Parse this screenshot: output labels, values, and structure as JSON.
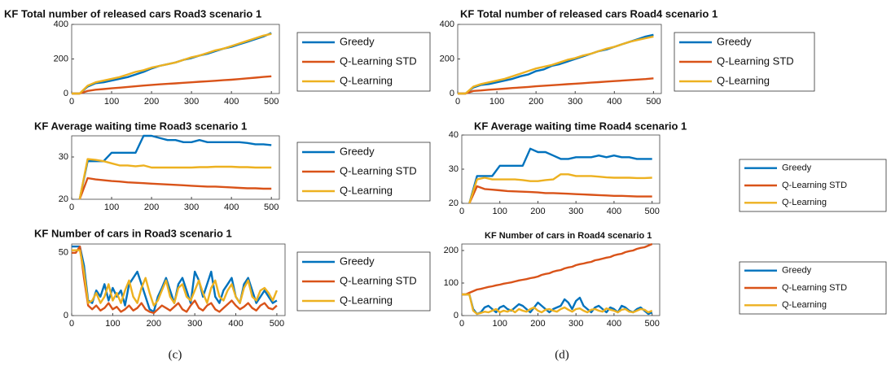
{
  "chart_data": [
    {
      "type": "line",
      "title": "KF Total number of released cars Road3 scenario 1",
      "x": [
        0,
        20,
        40,
        60,
        80,
        100,
        120,
        140,
        160,
        180,
        200,
        220,
        240,
        260,
        280,
        300,
        320,
        340,
        360,
        380,
        400,
        420,
        440,
        460,
        480,
        500
      ],
      "xlim": [
        0,
        520
      ],
      "xticks": [
        0,
        100,
        200,
        300,
        400,
        500
      ],
      "ylim": [
        0,
        400
      ],
      "yticks": [
        0,
        200,
        400
      ],
      "legend": "outside-right",
      "series": [
        {
          "name": "Greedy",
          "color": "#0072bd",
          "values": [
            0,
            0,
            40,
            60,
            65,
            75,
            85,
            95,
            110,
            125,
            145,
            160,
            170,
            180,
            195,
            205,
            220,
            230,
            245,
            260,
            270,
            285,
            300,
            315,
            330,
            350
          ]
        },
        {
          "name": "Q-Learning STD",
          "color": "#d95319",
          "values": [
            0,
            0,
            15,
            22,
            26,
            30,
            34,
            38,
            42,
            46,
            50,
            53,
            56,
            59,
            62,
            65,
            68,
            71,
            74,
            77,
            80,
            84,
            88,
            92,
            96,
            100
          ]
        },
        {
          "name": "Q-Learning",
          "color": "#edb120",
          "values": [
            0,
            0,
            45,
            65,
            75,
            85,
            95,
            110,
            125,
            135,
            150,
            160,
            170,
            180,
            195,
            210,
            220,
            235,
            250,
            260,
            275,
            290,
            305,
            320,
            335,
            345
          ]
        }
      ]
    },
    {
      "type": "line",
      "title": "KF Average waiting time Road3 scenario 1",
      "x": [
        20,
        40,
        60,
        80,
        100,
        120,
        140,
        160,
        180,
        200,
        220,
        240,
        260,
        280,
        300,
        320,
        340,
        360,
        380,
        400,
        420,
        440,
        460,
        480,
        500
      ],
      "xlim": [
        0,
        520
      ],
      "xticks": [
        0,
        100,
        200,
        300,
        400,
        500
      ],
      "ylim": [
        20,
        35
      ],
      "yticks": [
        20,
        30
      ],
      "legend": "outside-right",
      "series": [
        {
          "name": "Greedy",
          "color": "#0072bd",
          "values": [
            20,
            29,
            29,
            29,
            31,
            31,
            31,
            31,
            35,
            35,
            34.5,
            34,
            34,
            33.5,
            33.5,
            34,
            33.5,
            33.5,
            33.5,
            33.5,
            33.5,
            33.3,
            33,
            33,
            32.8
          ]
        },
        {
          "name": "Q-Learning STD",
          "color": "#d95319",
          "values": [
            20,
            25,
            24.7,
            24.5,
            24.3,
            24.2,
            24,
            23.9,
            23.8,
            23.7,
            23.6,
            23.5,
            23.4,
            23.3,
            23.2,
            23.1,
            23,
            23,
            22.9,
            22.8,
            22.7,
            22.6,
            22.6,
            22.5,
            22.5
          ]
        },
        {
          "name": "Q-Learning",
          "color": "#edb120",
          "values": [
            20,
            29.5,
            29.3,
            29,
            28.5,
            28,
            28,
            27.8,
            28,
            27.5,
            27.5,
            27.5,
            27.5,
            27.5,
            27.5,
            27.6,
            27.6,
            27.7,
            27.7,
            27.7,
            27.6,
            27.6,
            27.5,
            27.5,
            27.5
          ]
        }
      ]
    },
    {
      "type": "line",
      "title": "KF Number of cars in Road3 scenario 1",
      "x": [
        0,
        10,
        20,
        30,
        40,
        50,
        60,
        70,
        80,
        90,
        100,
        110,
        120,
        130,
        140,
        150,
        160,
        170,
        180,
        190,
        200,
        210,
        220,
        230,
        240,
        250,
        260,
        270,
        280,
        290,
        300,
        310,
        320,
        330,
        340,
        350,
        360,
        370,
        380,
        390,
        400,
        410,
        420,
        430,
        440,
        450,
        460,
        470,
        480,
        490,
        500
      ],
      "xlim": [
        0,
        520
      ],
      "xticks": [
        0,
        100,
        200,
        300,
        400,
        500
      ],
      "ylim": [
        0,
        57
      ],
      "yticks": [
        0,
        50
      ],
      "legend": "outside-right",
      "series": [
        {
          "name": "Greedy",
          "color": "#0072bd",
          "values": [
            55,
            55,
            55,
            40,
            12,
            10,
            20,
            15,
            25,
            12,
            22,
            15,
            20,
            8,
            25,
            30,
            35,
            25,
            15,
            5,
            3,
            15,
            22,
            30,
            20,
            10,
            25,
            30,
            20,
            10,
            35,
            28,
            15,
            25,
            35,
            15,
            10,
            20,
            25,
            30,
            15,
            10,
            25,
            30,
            20,
            10,
            15,
            20,
            15,
            10,
            12
          ]
        },
        {
          "name": "Q-Learning STD",
          "color": "#d95319",
          "values": [
            50,
            50,
            55,
            30,
            8,
            5,
            8,
            4,
            6,
            10,
            5,
            7,
            3,
            5,
            8,
            4,
            6,
            10,
            5,
            3,
            2,
            5,
            8,
            6,
            4,
            7,
            10,
            5,
            3,
            8,
            12,
            6,
            4,
            8,
            10,
            5,
            3,
            6,
            9,
            12,
            8,
            5,
            7,
            10,
            6,
            4,
            8,
            10,
            6,
            5,
            8
          ]
        },
        {
          "name": "Q-Learning",
          "color": "#edb120",
          "values": [
            52,
            52,
            52,
            35,
            10,
            12,
            18,
            10,
            15,
            25,
            12,
            18,
            10,
            20,
            28,
            15,
            10,
            22,
            30,
            18,
            8,
            12,
            20,
            28,
            15,
            10,
            22,
            25,
            15,
            12,
            20,
            28,
            18,
            10,
            22,
            28,
            15,
            12,
            20,
            25,
            15,
            10,
            22,
            28,
            15,
            12,
            20,
            22,
            18,
            12,
            20
          ]
        }
      ]
    },
    {
      "type": "line",
      "title": "KF Total number of released cars Road4 scenario 1",
      "x": [
        0,
        20,
        40,
        60,
        80,
        100,
        120,
        140,
        160,
        180,
        200,
        220,
        240,
        260,
        280,
        300,
        320,
        340,
        360,
        380,
        400,
        420,
        440,
        460,
        480,
        500
      ],
      "xlim": [
        0,
        520
      ],
      "xticks": [
        0,
        100,
        200,
        300,
        400,
        500
      ],
      "ylim": [
        0,
        400
      ],
      "yticks": [
        0,
        200,
        400
      ],
      "legend": "outside-right",
      "series": [
        {
          "name": "Greedy",
          "color": "#0072bd",
          "values": [
            0,
            0,
            35,
            50,
            55,
            65,
            75,
            85,
            100,
            110,
            130,
            140,
            160,
            170,
            185,
            200,
            215,
            230,
            245,
            255,
            270,
            285,
            300,
            315,
            330,
            340
          ]
        },
        {
          "name": "Q-Learning STD",
          "color": "#d95319",
          "values": [
            0,
            0,
            15,
            18,
            22,
            25,
            28,
            32,
            35,
            38,
            42,
            45,
            48,
            51,
            54,
            57,
            60,
            63,
            66,
            69,
            72,
            75,
            78,
            81,
            84,
            88
          ]
        },
        {
          "name": "Q-Learning",
          "color": "#edb120",
          "values": [
            0,
            0,
            40,
            55,
            65,
            75,
            85,
            100,
            115,
            130,
            145,
            155,
            165,
            180,
            195,
            205,
            220,
            230,
            245,
            260,
            270,
            285,
            300,
            310,
            320,
            330
          ]
        }
      ]
    },
    {
      "type": "line",
      "title": "KF Average waiting time Road4 scenario 1",
      "x": [
        20,
        40,
        60,
        80,
        100,
        120,
        140,
        160,
        180,
        200,
        220,
        240,
        260,
        280,
        300,
        320,
        340,
        360,
        380,
        400,
        420,
        440,
        460,
        480,
        500
      ],
      "xlim": [
        0,
        520
      ],
      "xticks": [
        0,
        100,
        200,
        300,
        400,
        500
      ],
      "ylim": [
        20,
        40
      ],
      "yticks": [
        20,
        30,
        40
      ],
      "legend": "outside-right",
      "series": [
        {
          "name": "Greedy",
          "color": "#0072bd",
          "values": [
            20,
            28,
            28,
            28,
            31,
            31,
            31,
            31,
            36,
            35,
            35,
            34,
            33,
            33,
            33.5,
            33.5,
            33.5,
            34,
            33.5,
            34,
            33.5,
            33.5,
            33,
            33,
            33
          ]
        },
        {
          "name": "Q-Learning STD",
          "color": "#d95319",
          "values": [
            20,
            25,
            24.2,
            24,
            23.8,
            23.6,
            23.5,
            23.4,
            23.3,
            23.2,
            23,
            23,
            22.9,
            22.8,
            22.7,
            22.6,
            22.5,
            22.4,
            22.3,
            22.2,
            22.2,
            22.1,
            22,
            22,
            22
          ]
        },
        {
          "name": "Q-Learning",
          "color": "#edb120",
          "values": [
            20,
            27,
            27.5,
            27,
            27,
            27,
            27,
            26.8,
            26.5,
            26.5,
            26.8,
            27,
            28.5,
            28.5,
            28,
            28,
            28,
            27.8,
            27.6,
            27.5,
            27.5,
            27.5,
            27.4,
            27.4,
            27.5
          ]
        }
      ]
    },
    {
      "type": "line",
      "title": "KF Number of cars in Road4 scenario 1",
      "x": [
        0,
        10,
        20,
        30,
        40,
        50,
        60,
        70,
        80,
        90,
        100,
        110,
        120,
        130,
        140,
        150,
        160,
        170,
        180,
        190,
        200,
        210,
        220,
        230,
        240,
        250,
        260,
        270,
        280,
        290,
        300,
        310,
        320,
        330,
        340,
        350,
        360,
        370,
        380,
        390,
        400,
        410,
        420,
        430,
        440,
        450,
        460,
        470,
        480,
        490,
        500
      ],
      "xlim": [
        0,
        520
      ],
      "xticks": [
        0,
        100,
        200,
        300,
        400,
        500
      ],
      "ylim": [
        0,
        220
      ],
      "yticks": [
        0,
        100,
        200
      ],
      "legend": "outside-right",
      "series": [
        {
          "name": "Greedy",
          "color": "#0072bd",
          "values": [
            65,
            65,
            65,
            20,
            5,
            10,
            25,
            30,
            20,
            10,
            25,
            30,
            20,
            15,
            25,
            35,
            30,
            20,
            10,
            25,
            40,
            30,
            20,
            10,
            20,
            25,
            30,
            50,
            40,
            20,
            45,
            55,
            30,
            20,
            10,
            25,
            30,
            20,
            10,
            25,
            20,
            10,
            30,
            25,
            15,
            10,
            20,
            25,
            15,
            5,
            10
          ]
        },
        {
          "name": "Q-Learning STD",
          "color": "#d95319",
          "values": [
            65,
            65,
            70,
            75,
            80,
            82,
            85,
            88,
            90,
            93,
            95,
            98,
            100,
            102,
            105,
            108,
            110,
            112,
            115,
            117,
            120,
            125,
            128,
            130,
            135,
            138,
            140,
            145,
            148,
            150,
            155,
            158,
            160,
            163,
            165,
            170,
            172,
            175,
            178,
            180,
            185,
            188,
            190,
            195,
            198,
            200,
            205,
            208,
            210,
            215,
            220
          ]
        },
        {
          "name": "Q-Learning",
          "color": "#edb120",
          "values": [
            65,
            65,
            65,
            15,
            5,
            8,
            12,
            10,
            15,
            20,
            10,
            15,
            12,
            18,
            10,
            20,
            15,
            12,
            20,
            25,
            15,
            10,
            18,
            20,
            15,
            12,
            20,
            25,
            18,
            12,
            20,
            22,
            15,
            10,
            18,
            20,
            15,
            12,
            22,
            18,
            15,
            10,
            18,
            20,
            12,
            10,
            15,
            20,
            18,
            10,
            15
          ]
        }
      ]
    }
  ],
  "captions": [
    "(c)",
    "(d)"
  ]
}
